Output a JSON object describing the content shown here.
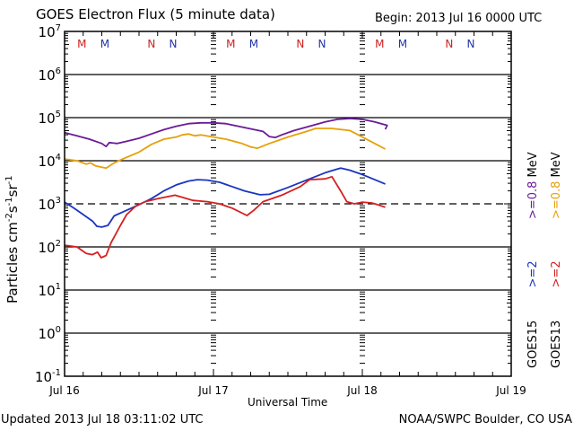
{
  "chart_data": {
    "type": "line",
    "title": "GOES Electron Flux (5 minute data)",
    "subtitle": "Begin: 2013 Jul 16 0000 UTC",
    "xlabel": "Universal Time",
    "ylabel": "Particles cm-2s-1sr-1",
    "ylabel_parts": {
      "base": "Particles cm",
      "exp1": "-2",
      "mid1": "s",
      "exp2": "-1",
      "mid2": "sr",
      "exp3": "-1"
    },
    "x_unit": "hours since 2013 Jul 16 0000 UTC",
    "xlim": [
      0,
      72
    ],
    "ylim_log10": [
      -1,
      7
    ],
    "yscale": "log",
    "x_ticks": [
      {
        "hour": 0,
        "label": "Jul 16"
      },
      {
        "hour": 24,
        "label": "Jul 17"
      },
      {
        "hour": 48,
        "label": "Jul 18"
      },
      {
        "hour": 72,
        "label": "Jul 19"
      }
    ],
    "y_ticks": [
      {
        "exp": 7,
        "base": "10",
        "sup": "7"
      },
      {
        "exp": 6,
        "base": "10",
        "sup": "6"
      },
      {
        "exp": 5,
        "base": "10",
        "sup": "5"
      },
      {
        "exp": 4,
        "base": "10",
        "sup": "4"
      },
      {
        "exp": 3,
        "base": "10",
        "sup": "3"
      },
      {
        "exp": 2,
        "base": "10",
        "sup": "2"
      },
      {
        "exp": 1,
        "base": "10",
        "sup": "1"
      },
      {
        "exp": 0,
        "base": "10",
        "sup": "0"
      },
      {
        "exp": -1,
        "base": "10",
        "sup": "-1"
      }
    ],
    "gridlines_log10": [
      6,
      5,
      4,
      2,
      1,
      0
    ],
    "threshold_log10": 3,
    "markers": [
      {
        "hour": 2.8,
        "label": "M",
        "color": "#cc2222"
      },
      {
        "hour": 6.5,
        "label": "M",
        "color": "#2233aa"
      },
      {
        "hour": 14.0,
        "label": "N",
        "color": "#cc2222"
      },
      {
        "hour": 17.5,
        "label": "N",
        "color": "#2233aa"
      },
      {
        "hour": 26.8,
        "label": "M",
        "color": "#cc2222"
      },
      {
        "hour": 30.5,
        "label": "M",
        "color": "#2233aa"
      },
      {
        "hour": 38.0,
        "label": "N",
        "color": "#cc2222"
      },
      {
        "hour": 41.5,
        "label": "N",
        "color": "#2233aa"
      },
      {
        "hour": 50.8,
        "label": "M",
        "color": "#cc2222"
      },
      {
        "hour": 54.5,
        "label": "M",
        "color": "#2233aa"
      },
      {
        "hour": 62.0,
        "label": "N",
        "color": "#cc2222"
      },
      {
        "hour": 65.5,
        "label": "N",
        "color": "#2233aa"
      }
    ],
    "series": [
      {
        "name": "GOES15 >=0.8 MeV",
        "color": "#6a1b9a",
        "points": [
          [
            0,
            4.65
          ],
          [
            2,
            4.58
          ],
          [
            4,
            4.5
          ],
          [
            6,
            4.4
          ],
          [
            6.7,
            4.33
          ],
          [
            7.2,
            4.42
          ],
          [
            8.5,
            4.4
          ],
          [
            10,
            4.45
          ],
          [
            12,
            4.52
          ],
          [
            14,
            4.62
          ],
          [
            16,
            4.72
          ],
          [
            18,
            4.8
          ],
          [
            20,
            4.86
          ],
          [
            22,
            4.88
          ],
          [
            24,
            4.88
          ],
          [
            26,
            4.86
          ],
          [
            28,
            4.8
          ],
          [
            30,
            4.74
          ],
          [
            32,
            4.68
          ],
          [
            33,
            4.56
          ],
          [
            34,
            4.54
          ],
          [
            35,
            4.6
          ],
          [
            37,
            4.7
          ],
          [
            40,
            4.82
          ],
          [
            42,
            4.9
          ],
          [
            44,
            4.96
          ],
          [
            46,
            4.98
          ],
          [
            48,
            4.96
          ],
          [
            50,
            4.9
          ],
          [
            52,
            4.82
          ],
          [
            51.7,
            4.73
          ]
        ]
      },
      {
        "name": "GOES13 >=0.8 MeV",
        "color": "#e6a00a",
        "points": [
          [
            0,
            4.04
          ],
          [
            2,
            4.0
          ],
          [
            3.5,
            3.92
          ],
          [
            4.2,
            3.95
          ],
          [
            5,
            3.88
          ],
          [
            6.7,
            3.83
          ],
          [
            8,
            3.95
          ],
          [
            10,
            4.08
          ],
          [
            12,
            4.2
          ],
          [
            14,
            4.38
          ],
          [
            16,
            4.5
          ],
          [
            18,
            4.55
          ],
          [
            19,
            4.6
          ],
          [
            20,
            4.62
          ],
          [
            21,
            4.58
          ],
          [
            22,
            4.6
          ],
          [
            24,
            4.55
          ],
          [
            26,
            4.5
          ],
          [
            28.6,
            4.4
          ],
          [
            30,
            4.32
          ],
          [
            31.1,
            4.29
          ],
          [
            33,
            4.4
          ],
          [
            36,
            4.55
          ],
          [
            39,
            4.68
          ],
          [
            40.5,
            4.75
          ],
          [
            43,
            4.75
          ],
          [
            46,
            4.7
          ],
          [
            48,
            4.55
          ],
          [
            50,
            4.4
          ],
          [
            51.7,
            4.27
          ]
        ]
      },
      {
        "name": "GOES15 >=2 MeV",
        "color": "#1a35c0",
        "points": [
          [
            0,
            3.04
          ],
          [
            1.5,
            2.9
          ],
          [
            3,
            2.75
          ],
          [
            4.5,
            2.6
          ],
          [
            5.2,
            2.48
          ],
          [
            6,
            2.46
          ],
          [
            7,
            2.5
          ],
          [
            8,
            2.72
          ],
          [
            10,
            2.85
          ],
          [
            12,
            2.98
          ],
          [
            14,
            3.12
          ],
          [
            16,
            3.3
          ],
          [
            18,
            3.44
          ],
          [
            20,
            3.53
          ],
          [
            21.4,
            3.56
          ],
          [
            23,
            3.55
          ],
          [
            25,
            3.5
          ],
          [
            27,
            3.4
          ],
          [
            29,
            3.3
          ],
          [
            31.5,
            3.21
          ],
          [
            33,
            3.22
          ],
          [
            36,
            3.38
          ],
          [
            39,
            3.55
          ],
          [
            42,
            3.72
          ],
          [
            43.8,
            3.8
          ],
          [
            44.5,
            3.83
          ],
          [
            46,
            3.78
          ],
          [
            48,
            3.68
          ],
          [
            50,
            3.56
          ],
          [
            51.7,
            3.46
          ]
        ]
      },
      {
        "name": "GOES13 >=2 MeV",
        "color": "#d42020",
        "points": [
          [
            0,
            2.04
          ],
          [
            2,
            2.0
          ],
          [
            3.5,
            1.85
          ],
          [
            4.5,
            1.82
          ],
          [
            5.3,
            1.88
          ],
          [
            5.9,
            1.75
          ],
          [
            6.7,
            1.8
          ],
          [
            7.5,
            2.1
          ],
          [
            9,
            2.5
          ],
          [
            10,
            2.75
          ],
          [
            11.5,
            2.95
          ],
          [
            13,
            3.05
          ],
          [
            15,
            3.12
          ],
          [
            17.8,
            3.2
          ],
          [
            19,
            3.15
          ],
          [
            20.7,
            3.08
          ],
          [
            23,
            3.05
          ],
          [
            25,
            3.0
          ],
          [
            27,
            2.9
          ],
          [
            29.4,
            2.73
          ],
          [
            30.5,
            2.85
          ],
          [
            32,
            3.05
          ],
          [
            35,
            3.2
          ],
          [
            38,
            3.4
          ],
          [
            39.5,
            3.56
          ],
          [
            42,
            3.58
          ],
          [
            43.1,
            3.63
          ],
          [
            44.5,
            3.3
          ],
          [
            45.5,
            3.05
          ],
          [
            46.7,
            3.0
          ],
          [
            48,
            3.04
          ],
          [
            49.5,
            3.02
          ],
          [
            50.5,
            2.98
          ],
          [
            51.7,
            2.92
          ]
        ]
      }
    ],
    "legend": [
      {
        "goes": "GOES15",
        "e2": ">=2",
        "e08": ">=0.8",
        "unit": "MeV",
        "color_e2": "#1a35c0",
        "color_e08": "#6a1b9a"
      },
      {
        "goes": "GOES13",
        "e2": ">=2",
        "e08": ">=0.8",
        "unit": "MeV",
        "color_e2": "#d42020",
        "color_e08": "#e6a00a"
      }
    ],
    "legend_placement": "right (vertical text)"
  },
  "footer": {
    "updated": "Updated 2013 Jul 18 03:11:02 UTC",
    "source": "NOAA/SWPC Boulder, CO USA"
  }
}
